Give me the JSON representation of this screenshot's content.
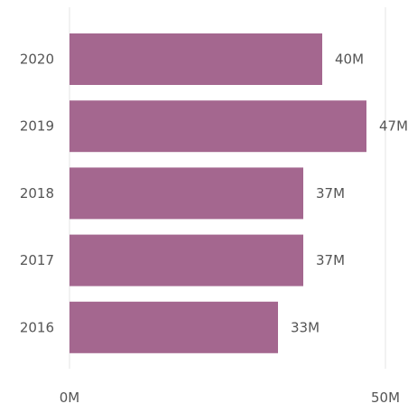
{
  "chart_data": {
    "type": "bar",
    "orientation": "horizontal",
    "categories": [
      "2020",
      "2019",
      "2018",
      "2017",
      "2016"
    ],
    "values": [
      40,
      47,
      37,
      37,
      33
    ],
    "data_labels": [
      "40M",
      "47M",
      "37M",
      "37M",
      "33M"
    ],
    "value_unit": "M",
    "xlim": [
      0,
      50
    ],
    "x_ticks": [
      0,
      50
    ],
    "x_tick_labels": [
      "0M",
      "50M"
    ],
    "title": "",
    "xlabel": "",
    "ylabel": "",
    "grid": "vertical",
    "legend": "none",
    "bar_color": "#a4678f"
  }
}
